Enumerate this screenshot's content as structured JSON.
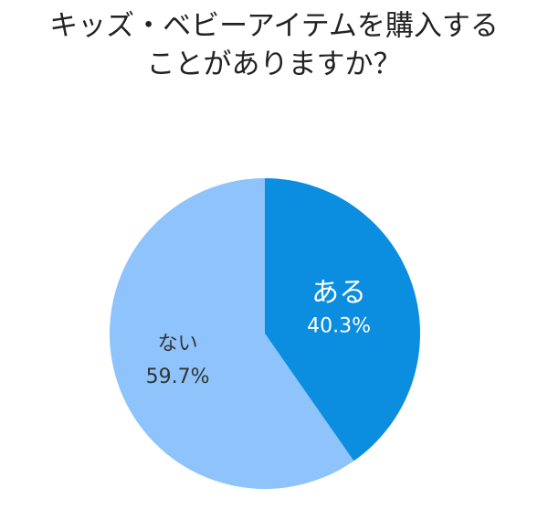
{
  "chart_data": {
    "type": "pie",
    "title": [
      "キッズ・ベビーアイテムを購入する",
      "ことがありますか？"
    ],
    "categories": [
      "ある",
      "ない"
    ],
    "values": [
      40.3,
      59.7
    ],
    "value_labels": [
      "40.3%",
      "59.7%"
    ],
    "colors": [
      "#0b8de0",
      "#8ec4fb"
    ],
    "label_colors": [
      "#ffffff",
      "#333333"
    ]
  }
}
